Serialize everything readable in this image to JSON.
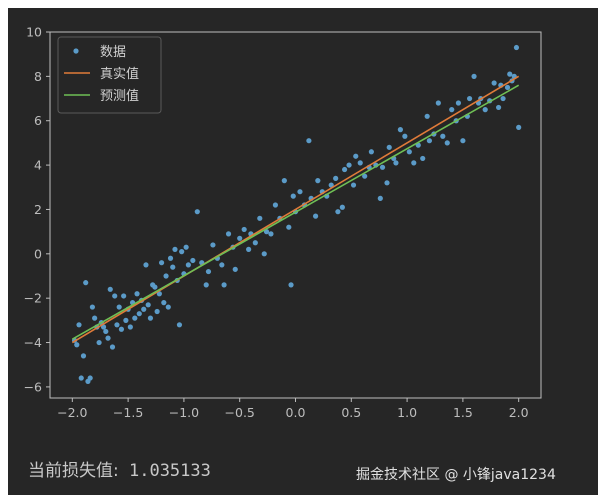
{
  "chart_data": {
    "type": "scatter",
    "title": "",
    "xlabel": "",
    "ylabel": "",
    "xlim": [
      -2.2,
      2.2
    ],
    "ylim": [
      -6.5,
      10
    ],
    "x_ticks": [
      "−2.0",
      "−1.5",
      "−1.0",
      "−0.5",
      "0.0",
      "0.5",
      "1.0",
      "1.5",
      "2.0"
    ],
    "y_ticks": [
      "−6",
      "−4",
      "−2",
      "0",
      "2",
      "4",
      "6",
      "8",
      "10"
    ],
    "grid": false,
    "legend_position": "top-left",
    "series": [
      {
        "name": "数据",
        "kind": "scatter",
        "color": "#5b9bc8",
        "points": [
          [
            -1.98,
            -3.9
          ],
          [
            -1.96,
            -4.1
          ],
          [
            -1.94,
            -3.2
          ],
          [
            -1.92,
            -5.6
          ],
          [
            -1.9,
            -4.6
          ],
          [
            -1.88,
            -1.3
          ],
          [
            -1.86,
            -5.75
          ],
          [
            -1.84,
            -5.6
          ],
          [
            -1.82,
            -2.4
          ],
          [
            -1.8,
            -2.9
          ],
          [
            -1.78,
            -3.3
          ],
          [
            -1.76,
            -4.0
          ],
          [
            -1.74,
            -3.1
          ],
          [
            -1.72,
            -3.3
          ],
          [
            -1.7,
            -3.5
          ],
          [
            -1.68,
            -3.8
          ],
          [
            -1.66,
            -1.6
          ],
          [
            -1.64,
            -4.2
          ],
          [
            -1.62,
            -1.9
          ],
          [
            -1.6,
            -3.2
          ],
          [
            -1.58,
            -2.4
          ],
          [
            -1.56,
            -3.4
          ],
          [
            -1.54,
            -1.9
          ],
          [
            -1.52,
            -3.0
          ],
          [
            -1.5,
            -2.5
          ],
          [
            -1.48,
            -3.3
          ],
          [
            -1.46,
            -2.2
          ],
          [
            -1.44,
            -2.9
          ],
          [
            -1.42,
            -1.8
          ],
          [
            -1.4,
            -2.7
          ],
          [
            -1.38,
            -2.1
          ],
          [
            -1.36,
            -2.5
          ],
          [
            -1.34,
            -0.5
          ],
          [
            -1.32,
            -2.3
          ],
          [
            -1.3,
            -2.9
          ],
          [
            -1.28,
            -1.4
          ],
          [
            -1.26,
            -1.5
          ],
          [
            -1.24,
            -2.6
          ],
          [
            -1.22,
            -1.8
          ],
          [
            -1.2,
            -0.4
          ],
          [
            -1.18,
            -2.2
          ],
          [
            -1.16,
            -1.0
          ],
          [
            -1.14,
            -2.4
          ],
          [
            -1.12,
            -0.2
          ],
          [
            -1.1,
            -0.6
          ],
          [
            -1.08,
            0.2
          ],
          [
            -1.06,
            -1.2
          ],
          [
            -1.04,
            -3.2
          ],
          [
            -1.02,
            0.1
          ],
          [
            -1.0,
            -0.9
          ],
          [
            -0.98,
            0.3
          ],
          [
            -0.96,
            -0.5
          ],
          [
            -0.92,
            -0.3
          ],
          [
            -0.88,
            1.9
          ],
          [
            -0.84,
            -0.4
          ],
          [
            -0.8,
            -1.4
          ],
          [
            -0.78,
            -0.8
          ],
          [
            -0.74,
            0.4
          ],
          [
            -0.7,
            -0.2
          ],
          [
            -0.66,
            -0.5
          ],
          [
            -0.64,
            -1.4
          ],
          [
            -0.6,
            0.9
          ],
          [
            -0.56,
            0.3
          ],
          [
            -0.54,
            -0.7
          ],
          [
            -0.5,
            0.7
          ],
          [
            -0.46,
            1.1
          ],
          [
            -0.42,
            0.2
          ],
          [
            -0.4,
            0.9
          ],
          [
            -0.36,
            0.5
          ],
          [
            -0.32,
            1.6
          ],
          [
            -0.28,
            0.0
          ],
          [
            -0.26,
            1.0
          ],
          [
            -0.22,
            0.9
          ],
          [
            -0.18,
            2.2
          ],
          [
            -0.14,
            1.6
          ],
          [
            -0.1,
            3.3
          ],
          [
            -0.06,
            1.2
          ],
          [
            -0.04,
            -1.4
          ],
          [
            -0.02,
            2.6
          ],
          [
            0.0,
            1.9
          ],
          [
            0.04,
            2.8
          ],
          [
            0.08,
            2.2
          ],
          [
            0.12,
            5.1
          ],
          [
            0.14,
            2.5
          ],
          [
            0.18,
            1.7
          ],
          [
            0.2,
            3.3
          ],
          [
            0.24,
            2.8
          ],
          [
            0.28,
            2.6
          ],
          [
            0.32,
            3.1
          ],
          [
            0.36,
            3.4
          ],
          [
            0.38,
            1.9
          ],
          [
            0.42,
            2.1
          ],
          [
            0.44,
            3.8
          ],
          [
            0.48,
            4.0
          ],
          [
            0.52,
            3.1
          ],
          [
            0.54,
            4.4
          ],
          [
            0.58,
            4.1
          ],
          [
            0.62,
            3.5
          ],
          [
            0.66,
            3.9
          ],
          [
            0.68,
            4.6
          ],
          [
            0.72,
            4.0
          ],
          [
            0.76,
            2.5
          ],
          [
            0.78,
            3.9
          ],
          [
            0.82,
            3.2
          ],
          [
            0.84,
            4.8
          ],
          [
            0.88,
            4.3
          ],
          [
            0.9,
            4.1
          ],
          [
            0.94,
            5.6
          ],
          [
            0.98,
            5.3
          ],
          [
            1.02,
            4.6
          ],
          [
            1.06,
            4.1
          ],
          [
            1.1,
            4.9
          ],
          [
            1.14,
            4.3
          ],
          [
            1.18,
            6.2
          ],
          [
            1.2,
            5.1
          ],
          [
            1.24,
            5.4
          ],
          [
            1.28,
            6.8
          ],
          [
            1.32,
            5.3
          ],
          [
            1.36,
            5.0
          ],
          [
            1.4,
            6.5
          ],
          [
            1.44,
            6.0
          ],
          [
            1.46,
            6.8
          ],
          [
            1.5,
            5.1
          ],
          [
            1.54,
            6.2
          ],
          [
            1.56,
            7.0
          ],
          [
            1.6,
            8.0
          ],
          [
            1.64,
            6.8
          ],
          [
            1.66,
            7.0
          ],
          [
            1.7,
            6.5
          ],
          [
            1.74,
            6.9
          ],
          [
            1.78,
            7.7
          ],
          [
            1.82,
            6.6
          ],
          [
            1.84,
            7.6
          ],
          [
            1.86,
            7.0
          ],
          [
            1.9,
            7.5
          ],
          [
            1.92,
            8.1
          ],
          [
            1.94,
            7.8
          ],
          [
            1.96,
            8.0
          ],
          [
            1.98,
            9.3
          ],
          [
            2.0,
            5.7
          ]
        ]
      },
      {
        "name": "真实值",
        "kind": "line",
        "color": "#e07b39",
        "points": [
          [
            -2.0,
            -4.0
          ],
          [
            2.0,
            8.0
          ]
        ]
      },
      {
        "name": "预测值",
        "kind": "line",
        "color": "#6fbf55",
        "points": [
          [
            -2.0,
            -3.85
          ],
          [
            2.0,
            7.6
          ]
        ]
      }
    ]
  },
  "loss": {
    "label": "当前损失值:",
    "value": "1.035133"
  },
  "watermark": "掘金技术社区 @ 小锋java1234",
  "colors": {
    "background": "#262626",
    "axes": "#bdbdbd",
    "ticks": "#bdbdbd"
  }
}
